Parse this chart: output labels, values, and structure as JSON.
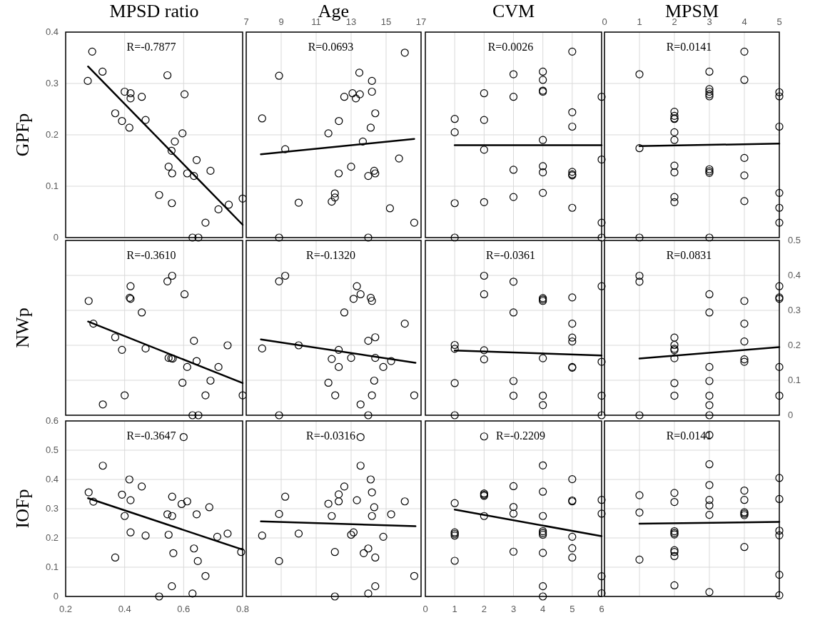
{
  "chart_data": [
    {
      "type": "scatter",
      "title": "MPSD ratio",
      "ylabel": "GPFp",
      "xlim": [
        0.2,
        0.8
      ],
      "xticks": [
        0.2,
        0.4,
        0.6,
        0.8
      ],
      "ylim": [
        0,
        0.4
      ],
      "yticks": [
        0,
        0.1,
        0.2,
        0.3,
        0.4
      ],
      "grid": true,
      "tick_labels": "y",
      "annotations": [
        "R=-0.7877"
      ],
      "series": [
        {
          "color": "#000000",
          "marker": "circle",
          "x": [
            0.29,
            0.275,
            0.325,
            0.4,
            0.42,
            0.42,
            0.458,
            0.368,
            0.391,
            0.416,
            0.471,
            0.545,
            0.603,
            0.596,
            0.57,
            0.559,
            0.549,
            0.561,
            0.612,
            0.635,
            0.644,
            0.691,
            0.517,
            0.56,
            0.718,
            0.753,
            0.8,
            0.674,
            0.63,
            0.65
          ],
          "values": [
            0.362,
            0.305,
            0.323,
            0.284,
            0.281,
            0.271,
            0.274,
            0.242,
            0.227,
            0.214,
            0.229,
            0.316,
            0.279,
            0.203,
            0.187,
            0.169,
            0.138,
            0.125,
            0.125,
            0.12,
            0.151,
            0.13,
            0.083,
            0.067,
            0.055,
            0.064,
            0.076,
            0.029,
            0,
            0
          ]
        },
        {
          "type": "line",
          "color": "#000000",
          "marker": "none",
          "x": [
            0.276,
            0.8
          ],
          "values": [
            0.333,
            0.025
          ]
        }
      ]
    },
    {
      "type": "scatter",
      "title": "Age",
      "xlim": [
        7,
        17
      ],
      "xticks": [
        7,
        9,
        11,
        13,
        15,
        17
      ],
      "ylim": [
        0,
        0.4
      ],
      "yticks": [
        0,
        0.1,
        0.2,
        0.3,
        0.4
      ],
      "grid": true,
      "tick_labels": "x",
      "annotations": [
        "R=0.0693"
      ],
      "series": [
        {
          "color": "#000000",
          "marker": "circle",
          "x": [
            7.91,
            8.88,
            9.23,
            8.88,
            10.0,
            11.7,
            12.3,
            12.61,
            13.08,
            13.27,
            13.5,
            13.47,
            14.19,
            14.19,
            14.38,
            14.12,
            13.67,
            13.0,
            12.29,
            13.98,
            14.32,
            14.38,
            12.07,
            12.07,
            11.89,
            15.74,
            15.22,
            16.07,
            16.61,
            13.98
          ],
          "values": [
            0.232,
            0.315,
            0.172,
            0,
            0.068,
            0.203,
            0.227,
            0.274,
            0.281,
            0.271,
            0.279,
            0.321,
            0.305,
            0.284,
            0.242,
            0.214,
            0.187,
            0.138,
            0.125,
            0.12,
            0.13,
            0.125,
            0.086,
            0.078,
            0.07,
            0.154,
            0.057,
            0.36,
            0.029,
            0
          ]
        },
        {
          "type": "line",
          "color": "#000000",
          "marker": "none",
          "x": [
            7.84,
            16.61
          ],
          "values": [
            0.162,
            0.192
          ]
        }
      ]
    },
    {
      "type": "scatter",
      "title": "CVM",
      "xlim": [
        0,
        6
      ],
      "xticks": [
        0,
        1,
        2,
        3,
        4,
        5,
        6
      ],
      "ylim": [
        0,
        0.4
      ],
      "yticks": [
        0,
        0.1,
        0.2,
        0.3,
        0.4
      ],
      "grid": true,
      "tick_labels": false,
      "annotations": [
        "R=0.0026"
      ],
      "series": [
        {
          "color": "#000000",
          "marker": "circle",
          "x": [
            1,
            1,
            1,
            1,
            2,
            2,
            2,
            2,
            3,
            3,
            3,
            3,
            4,
            4,
            4,
            4,
            4,
            4,
            4,
            4,
            5,
            5,
            5,
            5,
            5,
            5,
            5,
            6,
            6,
            6,
            6
          ],
          "values": [
            0.231,
            0.205,
            0.067,
            0,
            0.281,
            0.229,
            0.171,
            0.069,
            0.318,
            0.274,
            0.132,
            0.079,
            0.323,
            0.307,
            0.286,
            0.284,
            0.19,
            0.139,
            0.127,
            0.087,
            0.362,
            0.244,
            0.216,
            0.128,
            0.123,
            0.121,
            0.058,
            0.274,
            0.152,
            0.029,
            0
          ]
        },
        {
          "type": "line",
          "color": "#000000",
          "marker": "none",
          "x": [
            1,
            6
          ],
          "values": [
            0.18,
            0.18
          ]
        }
      ]
    },
    {
      "type": "scatter",
      "title": "MPSM",
      "xlim": [
        0,
        5
      ],
      "xticks": [
        0,
        1,
        2,
        3,
        4,
        5
      ],
      "ylim": [
        0,
        0.4
      ],
      "yticks": [
        0,
        0.1,
        0.2,
        0.3,
        0.4
      ],
      "grid": true,
      "tick_labels": "x",
      "annotations": [
        "R=0.0141"
      ],
      "series": [
        {
          "color": "#000000",
          "marker": "circle",
          "x": [
            1,
            1,
            1,
            2,
            2,
            2,
            2,
            2,
            2,
            2,
            2,
            2,
            2,
            3,
            3,
            3,
            3,
            3,
            3,
            3,
            3,
            3,
            4,
            4,
            4,
            4,
            4,
            5,
            5,
            5,
            5,
            5,
            5
          ],
          "values": [
            0.318,
            0.174,
            0,
            0.245,
            0.237,
            0.232,
            0.231,
            0.205,
            0.19,
            0.14,
            0.127,
            0.079,
            0.069,
            0.323,
            0.289,
            0.284,
            0.279,
            0.275,
            0.133,
            0.129,
            0.126,
            0,
            0.362,
            0.307,
            0.155,
            0.121,
            0.071,
            0.283,
            0.275,
            0.216,
            0.087,
            0.058,
            0.029
          ]
        },
        {
          "type": "line",
          "color": "#000000",
          "marker": "none",
          "x": [
            1,
            5
          ],
          "values": [
            0.178,
            0.183
          ]
        }
      ]
    },
    {
      "type": "scatter",
      "ylabel": "NWp",
      "xlim": [
        0.2,
        0.8
      ],
      "xticks": [
        0.2,
        0.4,
        0.6,
        0.8
      ],
      "ylim": [
        0,
        0.5
      ],
      "yticks": [
        0,
        0.1,
        0.2,
        0.3,
        0.4,
        0.5
      ],
      "grid": true,
      "tick_labels": false,
      "annotations": [
        "R=-0.3610"
      ],
      "series": [
        {
          "color": "#000000",
          "marker": "circle",
          "x": [
            0.278,
            0.294,
            0.326,
            0.368,
            0.391,
            0.4,
            0.42,
            0.417,
            0.42,
            0.458,
            0.471,
            0.545,
            0.561,
            0.603,
            0.549,
            0.558,
            0.563,
            0.635,
            0.644,
            0.612,
            0.596,
            0.691,
            0.718,
            0.749,
            0.674,
            0.8,
            0.63,
            0.65
          ],
          "values": [
            0.327,
            0.262,
            0.031,
            0.223,
            0.187,
            0.057,
            0.369,
            0.336,
            0.333,
            0.294,
            0.191,
            0.383,
            0.399,
            0.346,
            0.164,
            0.163,
            0.162,
            0.213,
            0.155,
            0.138,
            0.093,
            0.099,
            0.138,
            0.2,
            0.057,
            0.057,
            0,
            0
          ]
        },
        {
          "type": "line",
          "color": "#000000",
          "marker": "none",
          "x": [
            0.276,
            0.8
          ],
          "values": [
            0.268,
            0.092
          ]
        }
      ]
    },
    {
      "type": "scatter",
      "xlim": [
        7,
        17
      ],
      "xticks": [
        7,
        9,
        11,
        13,
        15,
        17
      ],
      "ylim": [
        0,
        0.5
      ],
      "yticks": [
        0,
        0.1,
        0.2,
        0.3,
        0.4,
        0.5
      ],
      "grid": true,
      "tick_labels": false,
      "annotations": [
        "R=-0.1320"
      ],
      "series": [
        {
          "color": "#000000",
          "marker": "circle",
          "x": [
            7.91,
            8.88,
            9.23,
            10.0,
            11.7,
            11.89,
            12.09,
            12.29,
            12.29,
            12.61,
            13.0,
            13.14,
            13.33,
            13.54,
            13.54,
            14.12,
            14.19,
            13.98,
            14.38,
            14.38,
            14.32,
            14.19,
            14.84,
            15.29,
            16.07,
            16.61,
            8.88,
            13.98
          ],
          "values": [
            0.191,
            0.383,
            0.399,
            0.2,
            0.093,
            0.161,
            0.057,
            0.187,
            0.138,
            0.294,
            0.164,
            0.333,
            0.369,
            0.346,
            0.031,
            0.336,
            0.327,
            0.213,
            0.223,
            0.164,
            0.099,
            0.057,
            0.138,
            0.155,
            0.262,
            0.057,
            0,
            0
          ]
        },
        {
          "type": "line",
          "color": "#000000",
          "marker": "none",
          "x": [
            7.84,
            16.68
          ],
          "values": [
            0.217,
            0.15
          ]
        }
      ]
    },
    {
      "type": "scatter",
      "xlim": [
        0,
        6
      ],
      "xticks": [
        0,
        1,
        2,
        3,
        4,
        5,
        6
      ],
      "ylim": [
        0,
        0.5
      ],
      "yticks": [
        0,
        0.1,
        0.2,
        0.3,
        0.4,
        0.5
      ],
      "grid": true,
      "tick_labels": false,
      "annotations": [
        "R=-0.0361"
      ],
      "series": [
        {
          "color": "#000000",
          "marker": "circle",
          "x": [
            1,
            1,
            1,
            1,
            2,
            2,
            2,
            2,
            3,
            3,
            3,
            3,
            4,
            4,
            4,
            4,
            4,
            4,
            5,
            5,
            5,
            5,
            5,
            5,
            6,
            6,
            6,
            6
          ],
          "values": [
            0.201,
            0.19,
            0.092,
            0,
            0.399,
            0.346,
            0.186,
            0.16,
            0.382,
            0.294,
            0.098,
            0.056,
            0.335,
            0.331,
            0.327,
            0.163,
            0.056,
            0.029,
            0.337,
            0.262,
            0.222,
            0.211,
            0.138,
            0.136,
            0.369,
            0.153,
            0.056,
            0
          ]
        },
        {
          "type": "line",
          "color": "#000000",
          "marker": "none",
          "x": [
            1,
            6
          ],
          "values": [
            0.185,
            0.171
          ]
        }
      ]
    },
    {
      "type": "scatter",
      "xlim": [
        0,
        5
      ],
      "xticks": [
        0,
        1,
        2,
        3,
        4,
        5
      ],
      "ylim": [
        0,
        0.5
      ],
      "yticks": [
        0,
        0.1,
        0.2,
        0.3,
        0.4,
        0.5
      ],
      "grid": true,
      "tick_labels": "y",
      "annotations": [
        "R=0.0831"
      ],
      "series": [
        {
          "color": "#000000",
          "marker": "circle",
          "x": [
            1,
            1,
            1,
            2,
            2,
            2,
            2,
            2,
            2,
            2,
            3,
            3,
            3,
            3,
            3,
            3,
            3,
            4,
            4,
            4,
            4,
            4,
            5,
            5,
            5,
            5,
            5
          ],
          "values": [
            0.399,
            0.382,
            0,
            0.222,
            0.201,
            0.19,
            0.186,
            0.163,
            0.092,
            0.056,
            0.346,
            0.294,
            0.138,
            0.098,
            0.056,
            0.029,
            0,
            0.327,
            0.262,
            0.211,
            0.16,
            0.153,
            0.369,
            0.337,
            0.333,
            0.138,
            0.056
          ]
        },
        {
          "type": "line",
          "color": "#000000",
          "marker": "none",
          "x": [
            1,
            5
          ],
          "values": [
            0.162,
            0.195
          ]
        }
      ]
    },
    {
      "type": "scatter",
      "ylabel": "IOFp",
      "xlim": [
        0.2,
        0.8
      ],
      "xticks": [
        0.2,
        0.4,
        0.6,
        0.8
      ],
      "ylim": [
        0,
        0.6
      ],
      "yticks": [
        0,
        0.1,
        0.2,
        0.3,
        0.4,
        0.5,
        0.6
      ],
      "grid": true,
      "annotations": [
        "R=-0.3647"
      ],
      "series": [
        {
          "color": "#000000",
          "marker": "circle",
          "x": [
            0.278,
            0.294,
            0.326,
            0.368,
            0.391,
            0.4,
            0.416,
            0.42,
            0.42,
            0.458,
            0.471,
            0.517,
            0.545,
            0.549,
            0.561,
            0.561,
            0.565,
            0.56,
            0.6,
            0.593,
            0.612,
            0.644,
            0.635,
            0.648,
            0.63,
            0.674,
            0.687,
            0.714,
            0.749,
            0.795
          ],
          "values": [
            0.356,
            0.324,
            0.447,
            0.133,
            0.348,
            0.275,
            0.4,
            0.329,
            0.219,
            0.376,
            0.208,
            0,
            0.281,
            0.211,
            0.341,
            0.275,
            0.148,
            0.035,
            0.545,
            0.316,
            0.325,
            0.281,
            0.164,
            0.121,
            0.01,
            0.07,
            0.305,
            0.204,
            0.215,
            0.152
          ]
        },
        {
          "type": "line",
          "color": "#000000",
          "marker": "none",
          "x": [
            0.276,
            0.8
          ],
          "values": [
            0.336,
            0.16
          ]
        }
      ]
    },
    {
      "type": "scatter",
      "xlim": [
        7,
        17
      ],
      "xticks": [
        7,
        9,
        11,
        13,
        15,
        17
      ],
      "ylim": [
        0,
        0.6
      ],
      "yticks": [
        0,
        0.1,
        0.2,
        0.3,
        0.4,
        0.5,
        0.6
      ],
      "grid": true,
      "tick_labels": false,
      "annotations": [
        "R=-0.0316"
      ],
      "series": [
        {
          "color": "#000000",
          "marker": "circle",
          "x": [
            7.91,
            8.88,
            8.88,
            9.23,
            10.0,
            11.7,
            11.89,
            12.07,
            12.07,
            12.29,
            12.29,
            12.61,
            13.0,
            13.14,
            13.33,
            13.54,
            13.54,
            13.72,
            13.98,
            13.98,
            14.12,
            14.19,
            14.19,
            14.32,
            14.38,
            14.38,
            14.84,
            15.29,
            16.07,
            16.61
          ],
          "values": [
            0.208,
            0.282,
            0.121,
            0.341,
            0.215,
            0.317,
            0.275,
            0.152,
            0,
            0.349,
            0.325,
            0.376,
            0.211,
            0.219,
            0.329,
            0.447,
            0.545,
            0.148,
            0.164,
            0.01,
            0.4,
            0.356,
            0.275,
            0.305,
            0.133,
            0.035,
            0.204,
            0.281,
            0.325,
            0.07
          ]
        },
        {
          "type": "line",
          "color": "#000000",
          "marker": "none",
          "x": [
            7.84,
            16.68
          ],
          "values": [
            0.257,
            0.24
          ]
        }
      ]
    },
    {
      "type": "scatter",
      "xlim": [
        0,
        6
      ],
      "xticks": [
        0,
        1,
        2,
        3,
        4,
        5,
        6
      ],
      "ylim": [
        0,
        0.6
      ],
      "yticks": [
        0,
        0.1,
        0.2,
        0.3,
        0.4,
        0.5,
        0.6
      ],
      "grid": true,
      "tick_labels": "x",
      "annotations": [
        "R=-0.2209"
      ],
      "series": [
        {
          "color": "#000000",
          "marker": "circle",
          "x": [
            1,
            1,
            1,
            1,
            1,
            2,
            2,
            2,
            2,
            2,
            3,
            3,
            3,
            3,
            4,
            4,
            4,
            4,
            4,
            4,
            4,
            4,
            4,
            5,
            5,
            5,
            5,
            5,
            5,
            6,
            6,
            6,
            6
          ],
          "values": [
            0.319,
            0.219,
            0.214,
            0.208,
            0.122,
            0.547,
            0.352,
            0.348,
            0.344,
            0.275,
            0.377,
            0.306,
            0.283,
            0.153,
            0.448,
            0.358,
            0.275,
            0.223,
            0.217,
            0.211,
            0.149,
            0.035,
            0,
            0.401,
            0.328,
            0.325,
            0.204,
            0.165,
            0.133,
            0.33,
            0.283,
            0.069,
            0.011
          ]
        },
        {
          "type": "line",
          "color": "#000000",
          "marker": "none",
          "x": [
            1,
            6
          ],
          "values": [
            0.297,
            0.206
          ]
        }
      ]
    },
    {
      "type": "scatter",
      "xlim": [
        0,
        5
      ],
      "xticks": [
        0,
        1,
        2,
        3,
        4,
        5
      ],
      "ylim": [
        0,
        0.6
      ],
      "yticks": [
        0,
        0.1,
        0.2,
        0.3,
        0.4,
        0.5,
        0.6
      ],
      "grid": true,
      "tick_labels": false,
      "annotations": [
        "R=0.0141"
      ],
      "series": [
        {
          "color": "#000000",
          "marker": "circle",
          "x": [
            1,
            1,
            1,
            2,
            2,
            2,
            2,
            2,
            2,
            2,
            2,
            2,
            3,
            3,
            3,
            3,
            3,
            3,
            3,
            4,
            4,
            4,
            4,
            4,
            4,
            5,
            5,
            5,
            5,
            5,
            5
          ],
          "values": [
            0.346,
            0.287,
            0.126,
            0.354,
            0.323,
            0.223,
            0.217,
            0.212,
            0.158,
            0.152,
            0.138,
            0.038,
            0.552,
            0.452,
            0.381,
            0.33,
            0.311,
            0.279,
            0.015,
            0.362,
            0.33,
            0.288,
            0.283,
            0.278,
            0.169,
            0.405,
            0.333,
            0.225,
            0.209,
            0.074,
            0.004
          ]
        },
        {
          "type": "line",
          "color": "#000000",
          "marker": "none",
          "x": [
            1,
            5
          ],
          "values": [
            0.249,
            0.255
          ]
        }
      ]
    }
  ]
}
